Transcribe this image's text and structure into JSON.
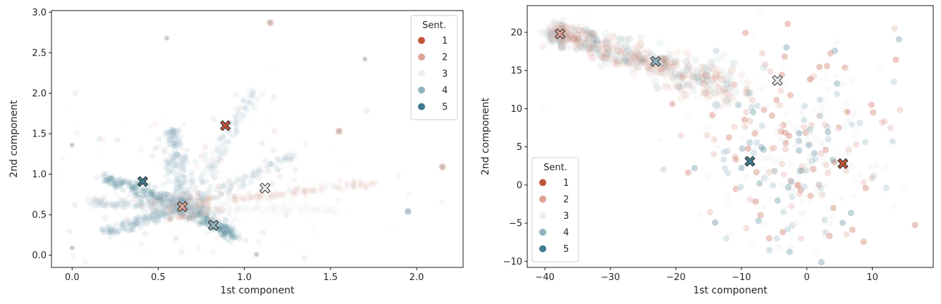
{
  "chart_data": [
    {
      "type": "scatter",
      "xlabel": "1st component",
      "ylabel": "2nd component",
      "xlim": [
        -0.12,
        2.27
      ],
      "ylim": [
        -0.15,
        3.02
      ],
      "xticks": [
        "0.0",
        "0.5",
        "1.0",
        "1.5",
        "2.0"
      ],
      "yticks": [
        "0.0",
        "0.5",
        "1.0",
        "1.5",
        "2.0",
        "2.5",
        "3.0"
      ],
      "legend": {
        "title": "Sent.",
        "placement": "top-right",
        "entries": [
          "1",
          "2",
          "3",
          "4",
          "5"
        ]
      },
      "colors": {
        "1": "#c0533a",
        "2": "#dca394",
        "3": "#eeeeee",
        "4": "#92b4c0",
        "5": "#3f7a8e"
      },
      "cloud_description": "star-shaped clusters radiating from about (0.65, 0.6)",
      "arms": [
        {
          "from": [
            0.65,
            0.6
          ],
          "to": [
            1.05,
            2.05
          ],
          "series_mix": "mostly 3, 4"
        },
        {
          "from": [
            0.65,
            0.6
          ],
          "to": [
            0.58,
            1.55
          ],
          "series_mix": "mostly 4"
        },
        {
          "from": [
            0.65,
            0.6
          ],
          "to": [
            1.3,
            1.25
          ],
          "series_mix": "3, 4"
        },
        {
          "from": [
            0.65,
            0.6
          ],
          "to": [
            1.75,
            0.9
          ],
          "series_mix": "2, 3"
        },
        {
          "from": [
            0.65,
            0.6
          ],
          "to": [
            0.2,
            0.95
          ],
          "series_mix": "4, 5"
        },
        {
          "from": [
            0.65,
            0.6
          ],
          "to": [
            0.1,
            0.65
          ],
          "series_mix": "3, 4"
        },
        {
          "from": [
            0.65,
            0.6
          ],
          "to": [
            0.2,
            0.28
          ],
          "series_mix": "4"
        },
        {
          "from": [
            0.65,
            0.6
          ],
          "to": [
            0.95,
            0.22
          ],
          "series_mix": "4, 5"
        },
        {
          "from": [
            0.65,
            0.6
          ],
          "to": [
            1.55,
            0.55
          ],
          "series_mix": "3"
        }
      ],
      "outliers": [
        {
          "x": 0.0,
          "y": 1.36,
          "s": 3
        },
        {
          "x": 0.0,
          "y": 0.09,
          "s": 3
        },
        {
          "x": 1.15,
          "y": 2.87,
          "s": 2
        },
        {
          "x": 1.55,
          "y": 1.53,
          "s": 2
        },
        {
          "x": 2.15,
          "y": 1.09,
          "s": 2
        },
        {
          "x": 1.07,
          "y": 0.01,
          "s": 3
        },
        {
          "x": 1.95,
          "y": 0.54,
          "s": 4
        },
        {
          "x": 1.7,
          "y": 2.42,
          "s": 3
        },
        {
          "x": 0.55,
          "y": 2.68,
          "s": 3
        }
      ],
      "centroids": [
        {
          "series": "1",
          "x": 0.89,
          "y": 1.6
        },
        {
          "series": "2",
          "x": 0.64,
          "y": 0.6
        },
        {
          "series": "3",
          "x": 1.12,
          "y": 0.83
        },
        {
          "series": "4",
          "x": 0.82,
          "y": 0.37
        },
        {
          "series": "5",
          "x": 0.41,
          "y": 0.91
        }
      ]
    },
    {
      "type": "scatter",
      "xlabel": "1st component",
      "ylabel": "2nd component",
      "xlim": [
        -42.7,
        19.3
      ],
      "ylim": [
        -10.8,
        23.5
      ],
      "xticks": [
        "−40",
        "−30",
        "−20",
        "−10",
        "0",
        "10"
      ],
      "yticks": [
        "−10",
        "−5",
        "0",
        "5",
        "10",
        "15",
        "20"
      ],
      "legend": {
        "title": "Sent.",
        "placement": "bottom-left",
        "entries": [
          "1",
          "2",
          "3",
          "4",
          "5"
        ]
      },
      "colors": {
        "1": "#c0533a",
        "2": "#dca394",
        "3": "#eeeeee",
        "4": "#92b4c0",
        "5": "#3f7a8e"
      },
      "cloud_description": "dense band from (-38, 20) curving to a diffuse cloud around (-2, 5)",
      "band": {
        "from": [
          -38,
          19.8
        ],
        "via": [
          -22,
          15.5
        ],
        "to": [
          -10,
          12
        ]
      },
      "cloud": {
        "center": [
          -2,
          5
        ],
        "spread": [
          8,
          6.5
        ]
      },
      "centroids": [
        {
          "series": "1",
          "x": 5.5,
          "y": 2.8
        },
        {
          "series": "2",
          "x": -37.7,
          "y": 19.8
        },
        {
          "series": "3",
          "x": -4.5,
          "y": 13.7
        },
        {
          "series": "4",
          "x": -23.1,
          "y": 16.2
        },
        {
          "series": "5",
          "x": -8.7,
          "y": 3.1
        }
      ]
    }
  ]
}
